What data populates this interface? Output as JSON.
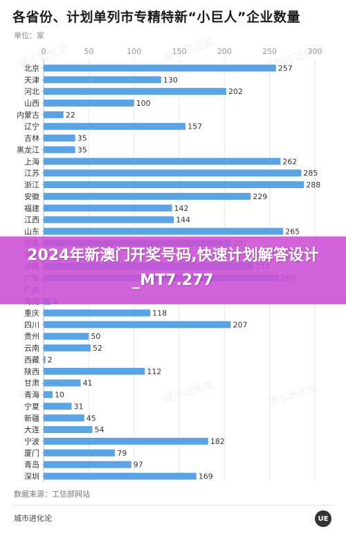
{
  "title": "各省份、计划单列市专精特新“小巨人”企业数量",
  "unit_label": "单位：家",
  "source": "数据来源：工信部网站",
  "brand": "城市进化论",
  "logo_icon": "city-evolution-logo-icon",
  "watermark_text": "城市进化论",
  "banner": {
    "text": "2024年新澳门开奖号码,快速计划解答设计_MT7.277"
  },
  "colors": {
    "bar": "#5aa4e6",
    "label": "#333333",
    "axis": "#999999",
    "grid": "#e6e6e6",
    "banner": "#cc4ed6"
  },
  "chart_data": {
    "type": "bar",
    "orientation": "horizontal",
    "title": "各省份、计划单列市专精特新“小巨人”企业数量",
    "xlabel": "",
    "ylabel": "",
    "xlim": [
      0,
      300
    ],
    "xticks": [
      0,
      50,
      100,
      150,
      200,
      250,
      300
    ],
    "xaxis_position": "top",
    "grid": true,
    "categories": [
      "北京",
      "天津",
      "河北",
      "山西",
      "内蒙古",
      "辽宁",
      "吉林",
      "黑龙江",
      "上海",
      "江苏",
      "浙江",
      "安徽",
      "福建",
      "江西",
      "山东",
      "河南",
      "湖北",
      "湖南",
      "广东",
      "广西",
      "海南",
      "重庆",
      "四川",
      "贵州",
      "云南",
      "西藏",
      "陕西",
      "甘肃",
      "青海",
      "宁夏",
      "新疆",
      "大连",
      "宁波",
      "厦门",
      "青岛",
      "深圳"
    ],
    "values": [
      257,
      130,
      202,
      100,
      22,
      157,
      35,
      35,
      262,
      285,
      288,
      229,
      142,
      144,
      265,
      207,
      null,
      232,
      260,
      null,
      8,
      118,
      207,
      50,
      52,
      2,
      112,
      41,
      10,
      31,
      45,
      54,
      182,
      79,
      97,
      169
    ]
  }
}
